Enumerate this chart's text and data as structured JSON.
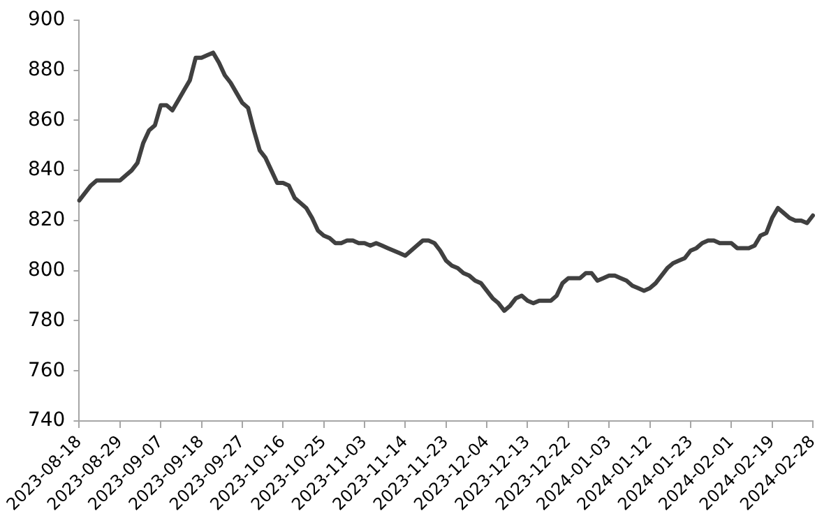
{
  "chart_data": {
    "type": "line",
    "categories": [
      "2023-08-18",
      null,
      null,
      null,
      null,
      null,
      null,
      "2023-08-29",
      null,
      null,
      null,
      null,
      null,
      null,
      "2023-09-07",
      null,
      null,
      null,
      null,
      null,
      null,
      "2023-09-18",
      null,
      null,
      null,
      null,
      null,
      null,
      "2023-09-27",
      null,
      null,
      null,
      null,
      null,
      null,
      "2023-10-16",
      null,
      null,
      null,
      null,
      null,
      null,
      "2023-10-25",
      null,
      null,
      null,
      null,
      null,
      null,
      "2023-11-03",
      null,
      null,
      null,
      null,
      null,
      null,
      "2023-11-14",
      null,
      null,
      null,
      null,
      null,
      null,
      "2023-11-23",
      null,
      null,
      null,
      null,
      null,
      null,
      "2023-12-04",
      null,
      null,
      null,
      null,
      null,
      null,
      "2023-12-13",
      null,
      null,
      null,
      null,
      null,
      null,
      "2023-12-22",
      null,
      null,
      null,
      null,
      null,
      null,
      "2024-01-03",
      null,
      null,
      null,
      null,
      null,
      null,
      "2024-01-12",
      null,
      null,
      null,
      null,
      null,
      null,
      "2024-01-23",
      null,
      null,
      null,
      null,
      null,
      null,
      "2024-02-01",
      null,
      null,
      null,
      null,
      null,
      null,
      "2024-02-19",
      null,
      null,
      null,
      null,
      null,
      null,
      "2024-02-28"
    ],
    "series": [
      {
        "color": "#404040",
        "values": [
          828,
          831,
          834,
          836,
          836,
          836,
          836,
          836,
          838,
          840,
          843,
          851,
          856,
          858,
          866,
          866,
          864,
          868,
          872,
          876,
          885,
          885,
          886,
          887,
          883,
          878,
          875,
          871,
          867,
          865,
          856,
          848,
          845,
          840,
          835,
          835,
          834,
          829,
          827,
          825,
          821,
          816,
          814,
          813,
          811,
          811,
          812,
          812,
          811,
          811,
          810,
          811,
          810,
          809,
          808,
          807,
          806,
          808,
          810,
          812,
          812,
          811,
          808,
          804,
          802,
          801,
          799,
          798,
          796,
          795,
          792,
          789,
          787,
          784,
          786,
          789,
          790,
          788,
          787,
          788,
          788,
          788,
          790,
          795,
          797,
          797,
          797,
          799,
          799,
          796,
          797,
          798,
          798,
          797,
          796,
          794,
          793,
          792,
          793,
          795,
          798,
          801,
          803,
          804,
          805,
          808,
          809,
          811,
          812,
          812,
          811,
          811,
          811,
          809,
          809,
          809,
          810,
          814,
          815,
          821,
          825,
          823,
          821,
          820,
          820,
          819,
          822
        ]
      }
    ],
    "ylim": [
      740,
      900
    ],
    "yticks": [
      740,
      760,
      780,
      800,
      820,
      840,
      860,
      880,
      900
    ],
    "grid": false,
    "legend": false,
    "marker": "none",
    "line_style": "solid"
  }
}
